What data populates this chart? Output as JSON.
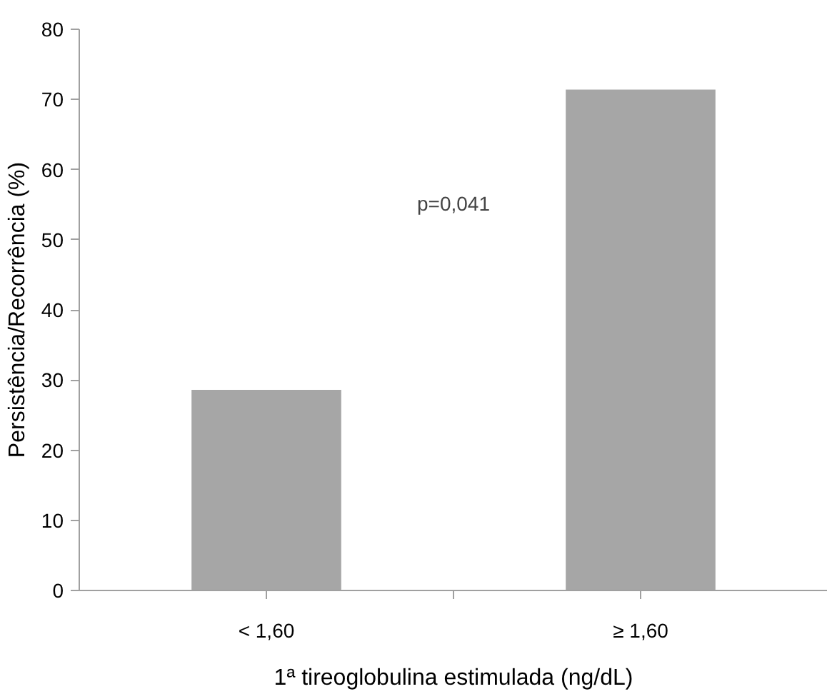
{
  "chart_data": {
    "type": "bar",
    "xlabel": "1ª tireoglobulina estimulada (ng/dL)",
    "ylabel": "Persistência/Recorrência (%)",
    "categories": [
      "< 1,60",
      "≥ 1,60"
    ],
    "values": [
      28.6,
      71.4
    ],
    "color": "#a6a6a6",
    "ylim": [
      0,
      80
    ],
    "yticks": [
      0,
      10,
      20,
      30,
      40,
      50,
      60,
      70,
      80
    ],
    "grid": false,
    "annotations": [
      "p=0,041"
    ]
  }
}
